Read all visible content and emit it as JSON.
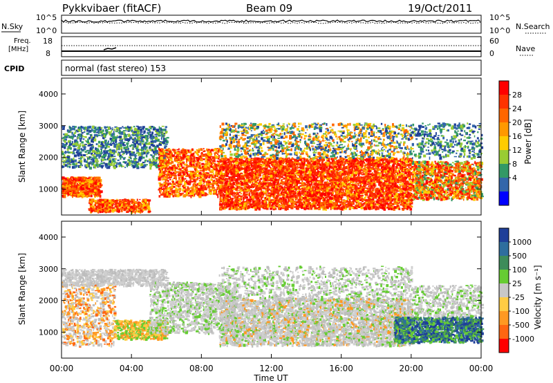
{
  "header": {
    "radar": "Pykkvibaer (fitACF)",
    "beam": "Beam 09",
    "date": "19/Oct/2011"
  },
  "noise_panel": {
    "left_label": "N.Sky",
    "right_label": "N.Search",
    "left_ticks": [
      "10^5",
      "10^0"
    ],
    "right_ticks": [
      "10^5",
      "10^0"
    ]
  },
  "freq_panel": {
    "left_label_line1": "Freq.",
    "left_label_line2": "[MHz]",
    "right_label": "Nave",
    "left_ticks": [
      "18",
      "8"
    ],
    "right_ticks": [
      "60",
      "0"
    ]
  },
  "cpid": {
    "label": "CPID",
    "text": "normal (fast stereo) 153"
  },
  "axes": {
    "y_label": "Slant Range [km]",
    "y_ticks": [
      "4000",
      "3000",
      "2000",
      "1000"
    ],
    "x_label": "Time UT",
    "x_ticks": [
      "00:00",
      "04:00",
      "08:00",
      "12:00",
      "16:00",
      "20:00",
      "00:00"
    ]
  },
  "power_bar": {
    "label": "Power [dB]",
    "ticks": [
      "28",
      "24",
      "20",
      "16",
      "12",
      "8",
      "4"
    ],
    "colors": [
      "#ff0000",
      "#ff3300",
      "#ff6600",
      "#ff9900",
      "#ffcc00",
      "#99cc33",
      "#339966",
      "#3366aa",
      "#0000ff"
    ]
  },
  "velocity_bar": {
    "label": "Velocity [m s⁻¹]",
    "ticks": [
      "1000",
      "500",
      "100",
      "25",
      "-25",
      "-100",
      "-500",
      "-1000"
    ],
    "colors": [
      "#1f3f99",
      "#2e6e9e",
      "#3d8c5a",
      "#66cc33",
      "#c8c8c8",
      "#ffcc44",
      "#ff9922",
      "#ff6611",
      "#ff0000"
    ]
  },
  "chart_data": {
    "type": "heatmap",
    "panels": [
      "power",
      "velocity"
    ],
    "x_range": [
      "00:00",
      "00:00"
    ],
    "y_range_km": [
      180,
      4500
    ],
    "power_scale_db": [
      0,
      30
    ],
    "velocity_scale_ms": [
      -1000,
      1000
    ],
    "summary": [
      {
        "time": "00:00-04:00",
        "range_km": [
          600,
          1400
        ],
        "power": "high (red)",
        "velocity": "negative (orange)"
      },
      {
        "time": "00:00-06:00",
        "range_km": [
          1700,
          3000
        ],
        "power": "low (blue/green)",
        "velocity": "near zero (gray)"
      },
      {
        "time": "05:00-09:00",
        "range_km": [
          800,
          2400
        ],
        "power": "high (red/orange)",
        "velocity": "near zero (gray)"
      },
      {
        "time": "09:00-20:00",
        "range_km": [
          400,
          2200
        ],
        "power": "high (red)",
        "velocity": "near zero (gray)"
      },
      {
        "time": "19:00-23:00",
        "range_km": [
          700,
          1600
        ],
        "power": "moderate",
        "velocity": "positive (green/blue)"
      }
    ]
  }
}
